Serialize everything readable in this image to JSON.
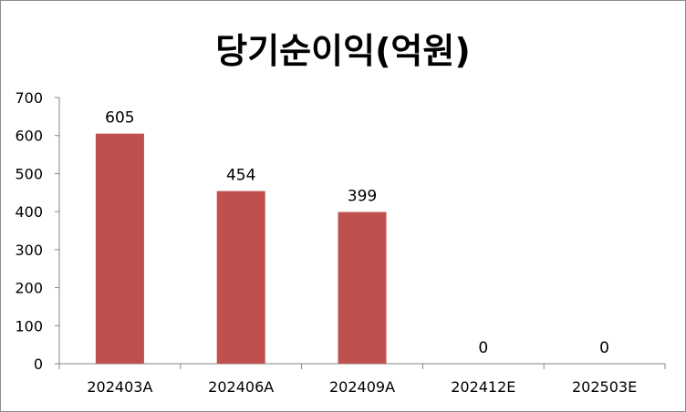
{
  "chart_data": {
    "type": "bar",
    "title": "당기순이익(억원)",
    "xlabel": "",
    "ylabel": "",
    "categories": [
      "202403A",
      "202406A",
      "202409A",
      "202412E",
      "202503E"
    ],
    "values": [
      605,
      454,
      399,
      0,
      0
    ],
    "data_labels": [
      "605",
      "454",
      "399",
      "0",
      "0"
    ],
    "ylim": [
      0,
      700
    ],
    "yticks": [
      0,
      100,
      200,
      300,
      400,
      500,
      600,
      700
    ],
    "grid": false,
    "legend": "none",
    "bar_color": "#c0504d"
  }
}
